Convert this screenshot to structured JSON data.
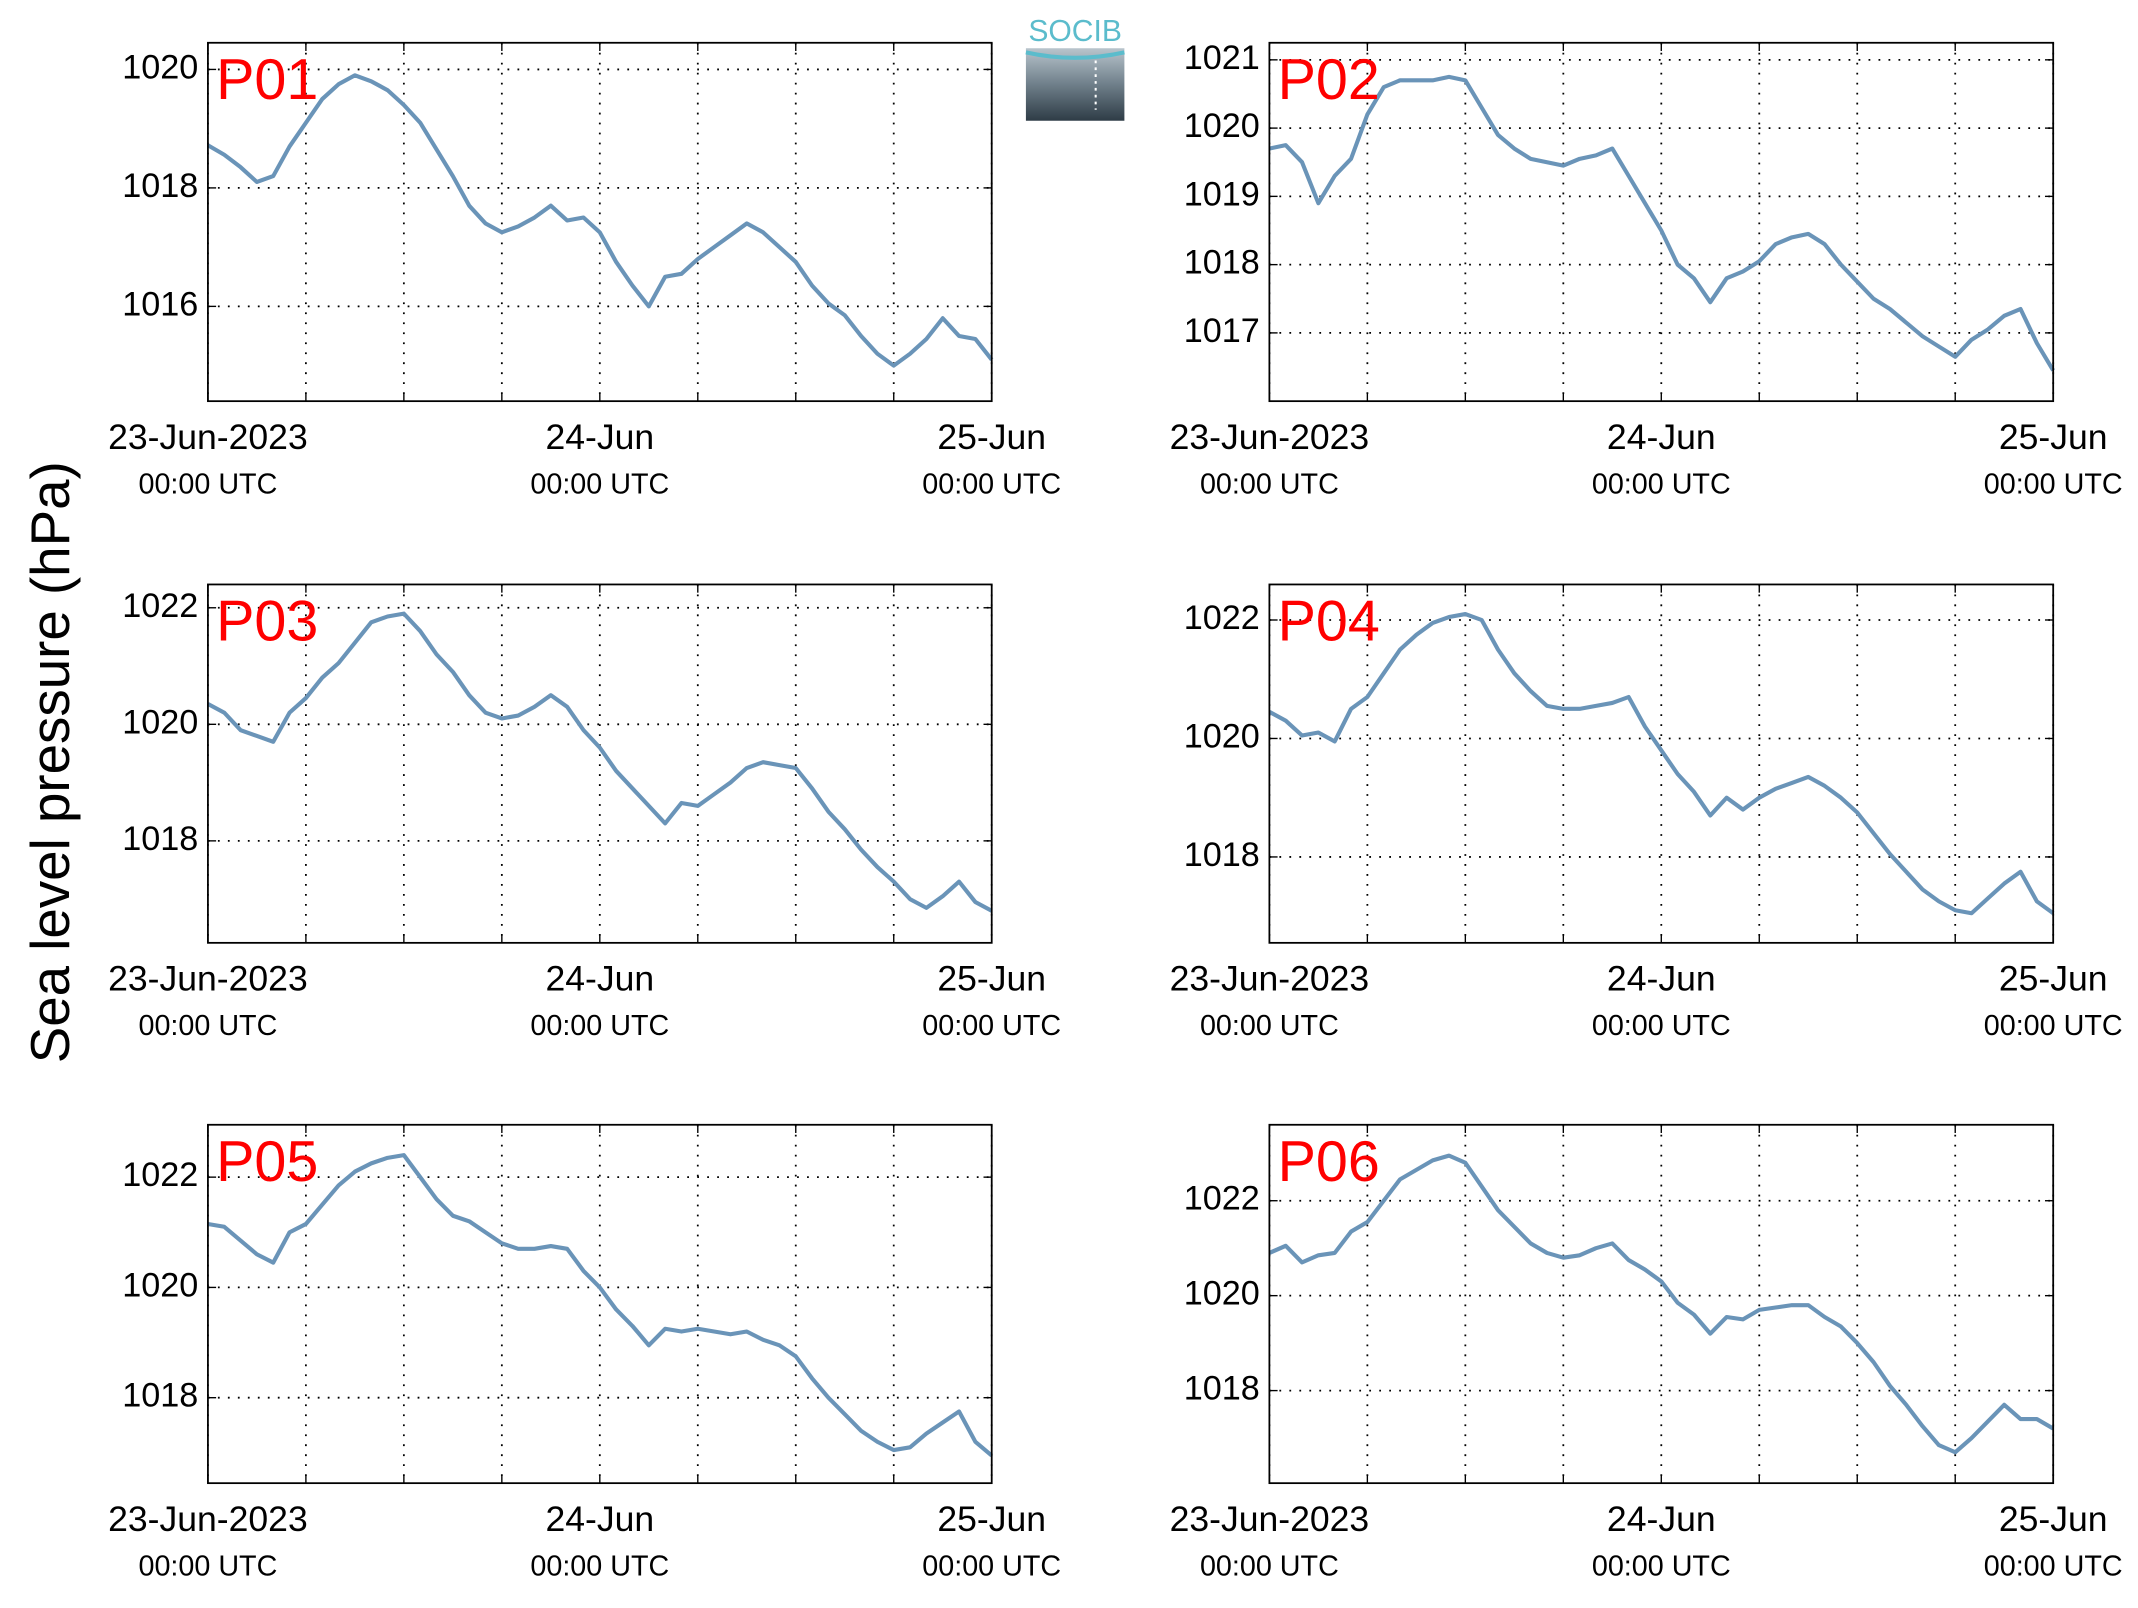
{
  "ylabel": "Sea level pressure (hPa)",
  "logo": "SOCIB",
  "chart_data": [
    {
      "type": "line",
      "title": "P01",
      "title_color": "#ff0000",
      "color": "#6a94b8",
      "grid": true,
      "x": [
        "2023-06-23 00:00",
        "2023-06-23 01:00",
        "2023-06-23 02:00",
        "2023-06-23 03:00",
        "2023-06-23 04:00",
        "2023-06-23 05:00",
        "2023-06-23 06:00",
        "2023-06-23 07:00",
        "2023-06-23 08:00",
        "2023-06-23 09:00",
        "2023-06-23 10:00",
        "2023-06-23 11:00",
        "2023-06-23 12:00",
        "2023-06-23 13:00",
        "2023-06-23 14:00",
        "2023-06-23 15:00",
        "2023-06-23 16:00",
        "2023-06-23 17:00",
        "2023-06-23 18:00",
        "2023-06-23 19:00",
        "2023-06-23 20:00",
        "2023-06-23 21:00",
        "2023-06-23 22:00",
        "2023-06-23 23:00",
        "2023-06-24 00:00",
        "2023-06-24 01:00",
        "2023-06-24 02:00",
        "2023-06-24 03:00",
        "2023-06-24 04:00",
        "2023-06-24 05:00",
        "2023-06-24 06:00",
        "2023-06-24 07:00",
        "2023-06-24 08:00",
        "2023-06-24 09:00",
        "2023-06-24 10:00",
        "2023-06-24 11:00",
        "2023-06-24 12:00",
        "2023-06-24 13:00",
        "2023-06-24 14:00",
        "2023-06-24 15:00",
        "2023-06-24 16:00",
        "2023-06-24 17:00",
        "2023-06-24 18:00",
        "2023-06-24 19:00",
        "2023-06-24 20:00",
        "2023-06-24 21:00",
        "2023-06-24 22:00",
        "2023-06-24 23:00",
        "2023-06-25 00:00"
      ],
      "values": [
        1018.72,
        1018.56,
        1018.35,
        1018.1,
        1018.2,
        1018.7,
        1019.1,
        1019.5,
        1019.75,
        1019.9,
        1019.8,
        1019.65,
        1019.4,
        1019.1,
        1018.65,
        1018.2,
        1017.7,
        1017.4,
        1017.25,
        1017.35,
        1017.5,
        1017.7,
        1017.45,
        1017.5,
        1017.25,
        1016.75,
        1016.35,
        1016.0,
        1016.5,
        1016.55,
        1016.8,
        1017.0,
        1017.2,
        1017.4,
        1017.25,
        1017.0,
        1016.75,
        1016.35,
        1016.05,
        1015.85,
        1015.5,
        1015.2,
        1015.0,
        1015.2,
        1015.45,
        1015.8,
        1015.5,
        1015.45,
        1015.1
      ],
      "xlim": [
        "2023-06-23 00:00",
        "2023-06-25 00:00"
      ],
      "xticks": [
        {
          "value": "2023-06-23 00:00",
          "label": [
            "23-Jun-2023",
            "00:00 UTC"
          ]
        },
        {
          "value": "2023-06-24 00:00",
          "label": [
            "24-Jun",
            "00:00 UTC"
          ]
        },
        {
          "value": "2023-06-25 00:00",
          "label": [
            "25-Jun",
            "00:00 UTC"
          ]
        }
      ],
      "xminorticks": [
        "2023-06-23 06:00",
        "2023-06-23 12:00",
        "2023-06-23 18:00",
        "2023-06-24 06:00",
        "2023-06-24 12:00",
        "2023-06-24 18:00"
      ],
      "ylim": [
        1014.4,
        1020.45
      ],
      "yticks": [
        1016,
        1018,
        1020
      ]
    },
    {
      "type": "line",
      "title": "P02",
      "title_color": "#ff0000",
      "color": "#6a94b8",
      "grid": true,
      "x": [
        "2023-06-23 00:00",
        "2023-06-23 01:00",
        "2023-06-23 02:00",
        "2023-06-23 03:00",
        "2023-06-23 04:00",
        "2023-06-23 05:00",
        "2023-06-23 06:00",
        "2023-06-23 07:00",
        "2023-06-23 08:00",
        "2023-06-23 09:00",
        "2023-06-23 10:00",
        "2023-06-23 11:00",
        "2023-06-23 12:00",
        "2023-06-23 13:00",
        "2023-06-23 14:00",
        "2023-06-23 15:00",
        "2023-06-23 16:00",
        "2023-06-23 17:00",
        "2023-06-23 18:00",
        "2023-06-23 19:00",
        "2023-06-23 20:00",
        "2023-06-23 21:00",
        "2023-06-23 22:00",
        "2023-06-23 23:00",
        "2023-06-24 00:00",
        "2023-06-24 01:00",
        "2023-06-24 02:00",
        "2023-06-24 03:00",
        "2023-06-24 04:00",
        "2023-06-24 05:00",
        "2023-06-24 06:00",
        "2023-06-24 07:00",
        "2023-06-24 08:00",
        "2023-06-24 09:00",
        "2023-06-24 10:00",
        "2023-06-24 11:00",
        "2023-06-24 12:00",
        "2023-06-24 13:00",
        "2023-06-24 14:00",
        "2023-06-24 15:00",
        "2023-06-24 16:00",
        "2023-06-24 17:00",
        "2023-06-24 18:00",
        "2023-06-24 19:00",
        "2023-06-24 20:00",
        "2023-06-24 21:00",
        "2023-06-24 22:00",
        "2023-06-24 23:00",
        "2023-06-25 00:00"
      ],
      "values": [
        1019.7,
        1019.75,
        1019.5,
        1018.9,
        1019.3,
        1019.55,
        1020.2,
        1020.6,
        1020.7,
        1020.7,
        1020.7,
        1020.75,
        1020.7,
        1020.3,
        1019.9,
        1019.7,
        1019.55,
        1019.5,
        1019.45,
        1019.55,
        1019.6,
        1019.7,
        1019.3,
        1018.9,
        1018.5,
        1018.0,
        1017.8,
        1017.45,
        1017.8,
        1017.9,
        1018.05,
        1018.3,
        1018.4,
        1018.45,
        1018.3,
        1018.0,
        1017.75,
        1017.5,
        1017.35,
        1017.15,
        1016.95,
        1016.8,
        1016.65,
        1016.9,
        1017.05,
        1017.25,
        1017.35,
        1016.85,
        1016.45
      ],
      "xlim": [
        "2023-06-23 00:00",
        "2023-06-25 00:00"
      ],
      "xticks": [
        {
          "value": "2023-06-23 00:00",
          "label": [
            "23-Jun-2023",
            "00:00 UTC"
          ]
        },
        {
          "value": "2023-06-24 00:00",
          "label": [
            "24-Jun",
            "00:00 UTC"
          ]
        },
        {
          "value": "2023-06-25 00:00",
          "label": [
            "25-Jun",
            "00:00 UTC"
          ]
        }
      ],
      "xminorticks": [
        "2023-06-23 06:00",
        "2023-06-23 12:00",
        "2023-06-23 18:00",
        "2023-06-24 06:00",
        "2023-06-24 12:00",
        "2023-06-24 18:00"
      ],
      "ylim": [
        1016.0,
        1021.25
      ],
      "yticks": [
        1017,
        1018,
        1019,
        1020,
        1021
      ]
    },
    {
      "type": "line",
      "title": "P03",
      "title_color": "#ff0000",
      "color": "#6a94b8",
      "grid": true,
      "x": [
        "2023-06-23 00:00",
        "2023-06-23 01:00",
        "2023-06-23 02:00",
        "2023-06-23 03:00",
        "2023-06-23 04:00",
        "2023-06-23 05:00",
        "2023-06-23 06:00",
        "2023-06-23 07:00",
        "2023-06-23 08:00",
        "2023-06-23 09:00",
        "2023-06-23 10:00",
        "2023-06-23 11:00",
        "2023-06-23 12:00",
        "2023-06-23 13:00",
        "2023-06-23 14:00",
        "2023-06-23 15:00",
        "2023-06-23 16:00",
        "2023-06-23 17:00",
        "2023-06-23 18:00",
        "2023-06-23 19:00",
        "2023-06-23 20:00",
        "2023-06-23 21:00",
        "2023-06-23 22:00",
        "2023-06-23 23:00",
        "2023-06-24 00:00",
        "2023-06-24 01:00",
        "2023-06-24 02:00",
        "2023-06-24 03:00",
        "2023-06-24 04:00",
        "2023-06-24 05:00",
        "2023-06-24 06:00",
        "2023-06-24 07:00",
        "2023-06-24 08:00",
        "2023-06-24 09:00",
        "2023-06-24 10:00",
        "2023-06-24 11:00",
        "2023-06-24 12:00",
        "2023-06-24 13:00",
        "2023-06-24 14:00",
        "2023-06-24 15:00",
        "2023-06-24 16:00",
        "2023-06-24 17:00",
        "2023-06-24 18:00",
        "2023-06-24 19:00",
        "2023-06-24 20:00",
        "2023-06-24 21:00",
        "2023-06-24 22:00",
        "2023-06-24 23:00",
        "2023-06-25 00:00"
      ],
      "values": [
        1020.35,
        1020.2,
        1019.9,
        1019.8,
        1019.7,
        1020.2,
        1020.45,
        1020.8,
        1021.05,
        1021.4,
        1021.75,
        1021.85,
        1021.9,
        1021.6,
        1021.2,
        1020.9,
        1020.5,
        1020.2,
        1020.1,
        1020.15,
        1020.3,
        1020.5,
        1020.3,
        1019.9,
        1019.6,
        1019.2,
        1018.9,
        1018.6,
        1018.3,
        1018.65,
        1018.6,
        1018.8,
        1019.0,
        1019.25,
        1019.35,
        1019.3,
        1019.25,
        1018.9,
        1018.5,
        1018.2,
        1017.85,
        1017.55,
        1017.3,
        1017.0,
        1016.85,
        1017.05,
        1017.3,
        1016.95,
        1016.8
      ],
      "xlim": [
        "2023-06-23 00:00",
        "2023-06-25 00:00"
      ],
      "xticks": [
        {
          "value": "2023-06-23 00:00",
          "label": [
            "23-Jun-2023",
            "00:00 UTC"
          ]
        },
        {
          "value": "2023-06-24 00:00",
          "label": [
            "24-Jun",
            "00:00 UTC"
          ]
        },
        {
          "value": "2023-06-25 00:00",
          "label": [
            "25-Jun",
            "00:00 UTC"
          ]
        }
      ],
      "xminorticks": [
        "2023-06-23 06:00",
        "2023-06-23 12:00",
        "2023-06-23 18:00",
        "2023-06-24 06:00",
        "2023-06-24 12:00",
        "2023-06-24 18:00"
      ],
      "ylim": [
        1016.25,
        1022.4
      ],
      "yticks": [
        1018,
        1020,
        1022
      ]
    },
    {
      "type": "line",
      "title": "P04",
      "title_color": "#ff0000",
      "color": "#6a94b8",
      "grid": true,
      "x": [
        "2023-06-23 00:00",
        "2023-06-23 01:00",
        "2023-06-23 02:00",
        "2023-06-23 03:00",
        "2023-06-23 04:00",
        "2023-06-23 05:00",
        "2023-06-23 06:00",
        "2023-06-23 07:00",
        "2023-06-23 08:00",
        "2023-06-23 09:00",
        "2023-06-23 10:00",
        "2023-06-23 11:00",
        "2023-06-23 12:00",
        "2023-06-23 13:00",
        "2023-06-23 14:00",
        "2023-06-23 15:00",
        "2023-06-23 16:00",
        "2023-06-23 17:00",
        "2023-06-23 18:00",
        "2023-06-23 19:00",
        "2023-06-23 20:00",
        "2023-06-23 21:00",
        "2023-06-23 22:00",
        "2023-06-23 23:00",
        "2023-06-24 00:00",
        "2023-06-24 01:00",
        "2023-06-24 02:00",
        "2023-06-24 03:00",
        "2023-06-24 04:00",
        "2023-06-24 05:00",
        "2023-06-24 06:00",
        "2023-06-24 07:00",
        "2023-06-24 08:00",
        "2023-06-24 09:00",
        "2023-06-24 10:00",
        "2023-06-24 11:00",
        "2023-06-24 12:00",
        "2023-06-24 13:00",
        "2023-06-24 14:00",
        "2023-06-24 15:00",
        "2023-06-24 16:00",
        "2023-06-24 17:00",
        "2023-06-24 18:00",
        "2023-06-24 19:00",
        "2023-06-24 20:00",
        "2023-06-24 21:00",
        "2023-06-24 22:00",
        "2023-06-24 23:00",
        "2023-06-25 00:00"
      ],
      "values": [
        1020.45,
        1020.3,
        1020.05,
        1020.1,
        1019.95,
        1020.5,
        1020.7,
        1021.1,
        1021.5,
        1021.75,
        1021.95,
        1022.05,
        1022.1,
        1022.0,
        1021.5,
        1021.1,
        1020.8,
        1020.55,
        1020.5,
        1020.5,
        1020.55,
        1020.6,
        1020.7,
        1020.2,
        1019.8,
        1019.4,
        1019.1,
        1018.7,
        1019.0,
        1018.8,
        1019.0,
        1019.15,
        1019.25,
        1019.35,
        1019.2,
        1019.0,
        1018.75,
        1018.4,
        1018.05,
        1017.75,
        1017.45,
        1017.25,
        1017.1,
        1017.05,
        1017.3,
        1017.55,
        1017.75,
        1017.25,
        1017.05
      ],
      "xlim": [
        "2023-06-23 00:00",
        "2023-06-25 00:00"
      ],
      "xticks": [
        {
          "value": "2023-06-23 00:00",
          "label": [
            "23-Jun-2023",
            "00:00 UTC"
          ]
        },
        {
          "value": "2023-06-24 00:00",
          "label": [
            "24-Jun",
            "00:00 UTC"
          ]
        },
        {
          "value": "2023-06-25 00:00",
          "label": [
            "25-Jun",
            "00:00 UTC"
          ]
        }
      ],
      "xminorticks": [
        "2023-06-23 06:00",
        "2023-06-23 12:00",
        "2023-06-23 18:00",
        "2023-06-24 06:00",
        "2023-06-24 12:00",
        "2023-06-24 18:00"
      ],
      "ylim": [
        1016.55,
        1022.6
      ],
      "yticks": [
        1018,
        1020,
        1022
      ]
    },
    {
      "type": "line",
      "title": "P05",
      "title_color": "#ff0000",
      "color": "#6a94b8",
      "grid": true,
      "x": [
        "2023-06-23 00:00",
        "2023-06-23 01:00",
        "2023-06-23 02:00",
        "2023-06-23 03:00",
        "2023-06-23 04:00",
        "2023-06-23 05:00",
        "2023-06-23 06:00",
        "2023-06-23 07:00",
        "2023-06-23 08:00",
        "2023-06-23 09:00",
        "2023-06-23 10:00",
        "2023-06-23 11:00",
        "2023-06-23 12:00",
        "2023-06-23 13:00",
        "2023-06-23 14:00",
        "2023-06-23 15:00",
        "2023-06-23 16:00",
        "2023-06-23 17:00",
        "2023-06-23 18:00",
        "2023-06-23 19:00",
        "2023-06-23 20:00",
        "2023-06-23 21:00",
        "2023-06-23 22:00",
        "2023-06-23 23:00",
        "2023-06-24 00:00",
        "2023-06-24 01:00",
        "2023-06-24 02:00",
        "2023-06-24 03:00",
        "2023-06-24 04:00",
        "2023-06-24 05:00",
        "2023-06-24 06:00",
        "2023-06-24 07:00",
        "2023-06-24 08:00",
        "2023-06-24 09:00",
        "2023-06-24 10:00",
        "2023-06-24 11:00",
        "2023-06-24 12:00",
        "2023-06-24 13:00",
        "2023-06-24 14:00",
        "2023-06-24 15:00",
        "2023-06-24 16:00",
        "2023-06-24 17:00",
        "2023-06-24 18:00",
        "2023-06-24 19:00",
        "2023-06-24 20:00",
        "2023-06-24 21:00",
        "2023-06-24 22:00",
        "2023-06-24 23:00",
        "2023-06-25 00:00"
      ],
      "values": [
        1021.15,
        1021.1,
        1020.85,
        1020.6,
        1020.45,
        1021.0,
        1021.15,
        1021.5,
        1021.85,
        1022.1,
        1022.25,
        1022.35,
        1022.4,
        1022.0,
        1021.6,
        1021.3,
        1021.2,
        1021.0,
        1020.8,
        1020.7,
        1020.7,
        1020.75,
        1020.7,
        1020.3,
        1020.0,
        1019.6,
        1019.3,
        1018.95,
        1019.25,
        1019.2,
        1019.25,
        1019.2,
        1019.15,
        1019.2,
        1019.05,
        1018.95,
        1018.75,
        1018.35,
        1018.0,
        1017.7,
        1017.4,
        1017.2,
        1017.05,
        1017.1,
        1017.35,
        1017.55,
        1017.75,
        1017.2,
        1016.95
      ],
      "xlim": [
        "2023-06-23 00:00",
        "2023-06-25 00:00"
      ],
      "xticks": [
        {
          "value": "2023-06-23 00:00",
          "label": [
            "23-Jun-2023",
            "00:00 UTC"
          ]
        },
        {
          "value": "2023-06-24 00:00",
          "label": [
            "24-Jun",
            "00:00 UTC"
          ]
        },
        {
          "value": "2023-06-25 00:00",
          "label": [
            "25-Jun",
            "00:00 UTC"
          ]
        }
      ],
      "xminorticks": [
        "2023-06-23 06:00",
        "2023-06-23 12:00",
        "2023-06-23 18:00",
        "2023-06-24 06:00",
        "2023-06-24 12:00",
        "2023-06-24 18:00"
      ],
      "ylim": [
        1016.45,
        1022.95
      ],
      "yticks": [
        1018,
        1020,
        1022
      ]
    },
    {
      "type": "line",
      "title": "P06",
      "title_color": "#ff0000",
      "color": "#6a94b8",
      "grid": true,
      "x": [
        "2023-06-23 00:00",
        "2023-06-23 01:00",
        "2023-06-23 02:00",
        "2023-06-23 03:00",
        "2023-06-23 04:00",
        "2023-06-23 05:00",
        "2023-06-23 06:00",
        "2023-06-23 07:00",
        "2023-06-23 08:00",
        "2023-06-23 09:00",
        "2023-06-23 10:00",
        "2023-06-23 11:00",
        "2023-06-23 12:00",
        "2023-06-23 13:00",
        "2023-06-23 14:00",
        "2023-06-23 15:00",
        "2023-06-23 16:00",
        "2023-06-23 17:00",
        "2023-06-23 18:00",
        "2023-06-23 19:00",
        "2023-06-23 20:00",
        "2023-06-23 21:00",
        "2023-06-23 22:00",
        "2023-06-23 23:00",
        "2023-06-24 00:00",
        "2023-06-24 01:00",
        "2023-06-24 02:00",
        "2023-06-24 03:00",
        "2023-06-24 04:00",
        "2023-06-24 05:00",
        "2023-06-24 06:00",
        "2023-06-24 07:00",
        "2023-06-24 08:00",
        "2023-06-24 09:00",
        "2023-06-24 10:00",
        "2023-06-24 11:00",
        "2023-06-24 12:00",
        "2023-06-24 13:00",
        "2023-06-24 14:00",
        "2023-06-24 15:00",
        "2023-06-24 16:00",
        "2023-06-24 17:00",
        "2023-06-24 18:00",
        "2023-06-24 19:00",
        "2023-06-24 20:00",
        "2023-06-24 21:00",
        "2023-06-24 22:00",
        "2023-06-24 23:00",
        "2023-06-25 00:00"
      ],
      "values": [
        1020.9,
        1021.05,
        1020.7,
        1020.85,
        1020.9,
        1021.35,
        1021.55,
        1022.0,
        1022.45,
        1022.65,
        1022.85,
        1022.95,
        1022.8,
        1022.3,
        1021.8,
        1021.45,
        1021.1,
        1020.9,
        1020.8,
        1020.85,
        1021.0,
        1021.1,
        1020.75,
        1020.55,
        1020.3,
        1019.85,
        1019.6,
        1019.2,
        1019.55,
        1019.5,
        1019.7,
        1019.75,
        1019.8,
        1019.8,
        1019.55,
        1019.35,
        1019.0,
        1018.6,
        1018.1,
        1017.7,
        1017.25,
        1016.85,
        1016.7,
        1017.0,
        1017.35,
        1017.7,
        1017.4,
        1017.4,
        1017.2
      ],
      "xlim": [
        "2023-06-23 00:00",
        "2023-06-25 00:00"
      ],
      "xticks": [
        {
          "value": "2023-06-23 00:00",
          "label": [
            "23-Jun-2023",
            "00:00 UTC"
          ]
        },
        {
          "value": "2023-06-24 00:00",
          "label": [
            "24-Jun",
            "00:00 UTC"
          ]
        },
        {
          "value": "2023-06-25 00:00",
          "label": [
            "25-Jun",
            "00:00 UTC"
          ]
        }
      ],
      "xminorticks": [
        "2023-06-23 06:00",
        "2023-06-23 12:00",
        "2023-06-23 18:00",
        "2023-06-24 06:00",
        "2023-06-24 12:00",
        "2023-06-24 18:00"
      ],
      "ylim": [
        1016.05,
        1023.6
      ],
      "yticks": [
        1018,
        1020,
        1022
      ]
    }
  ]
}
